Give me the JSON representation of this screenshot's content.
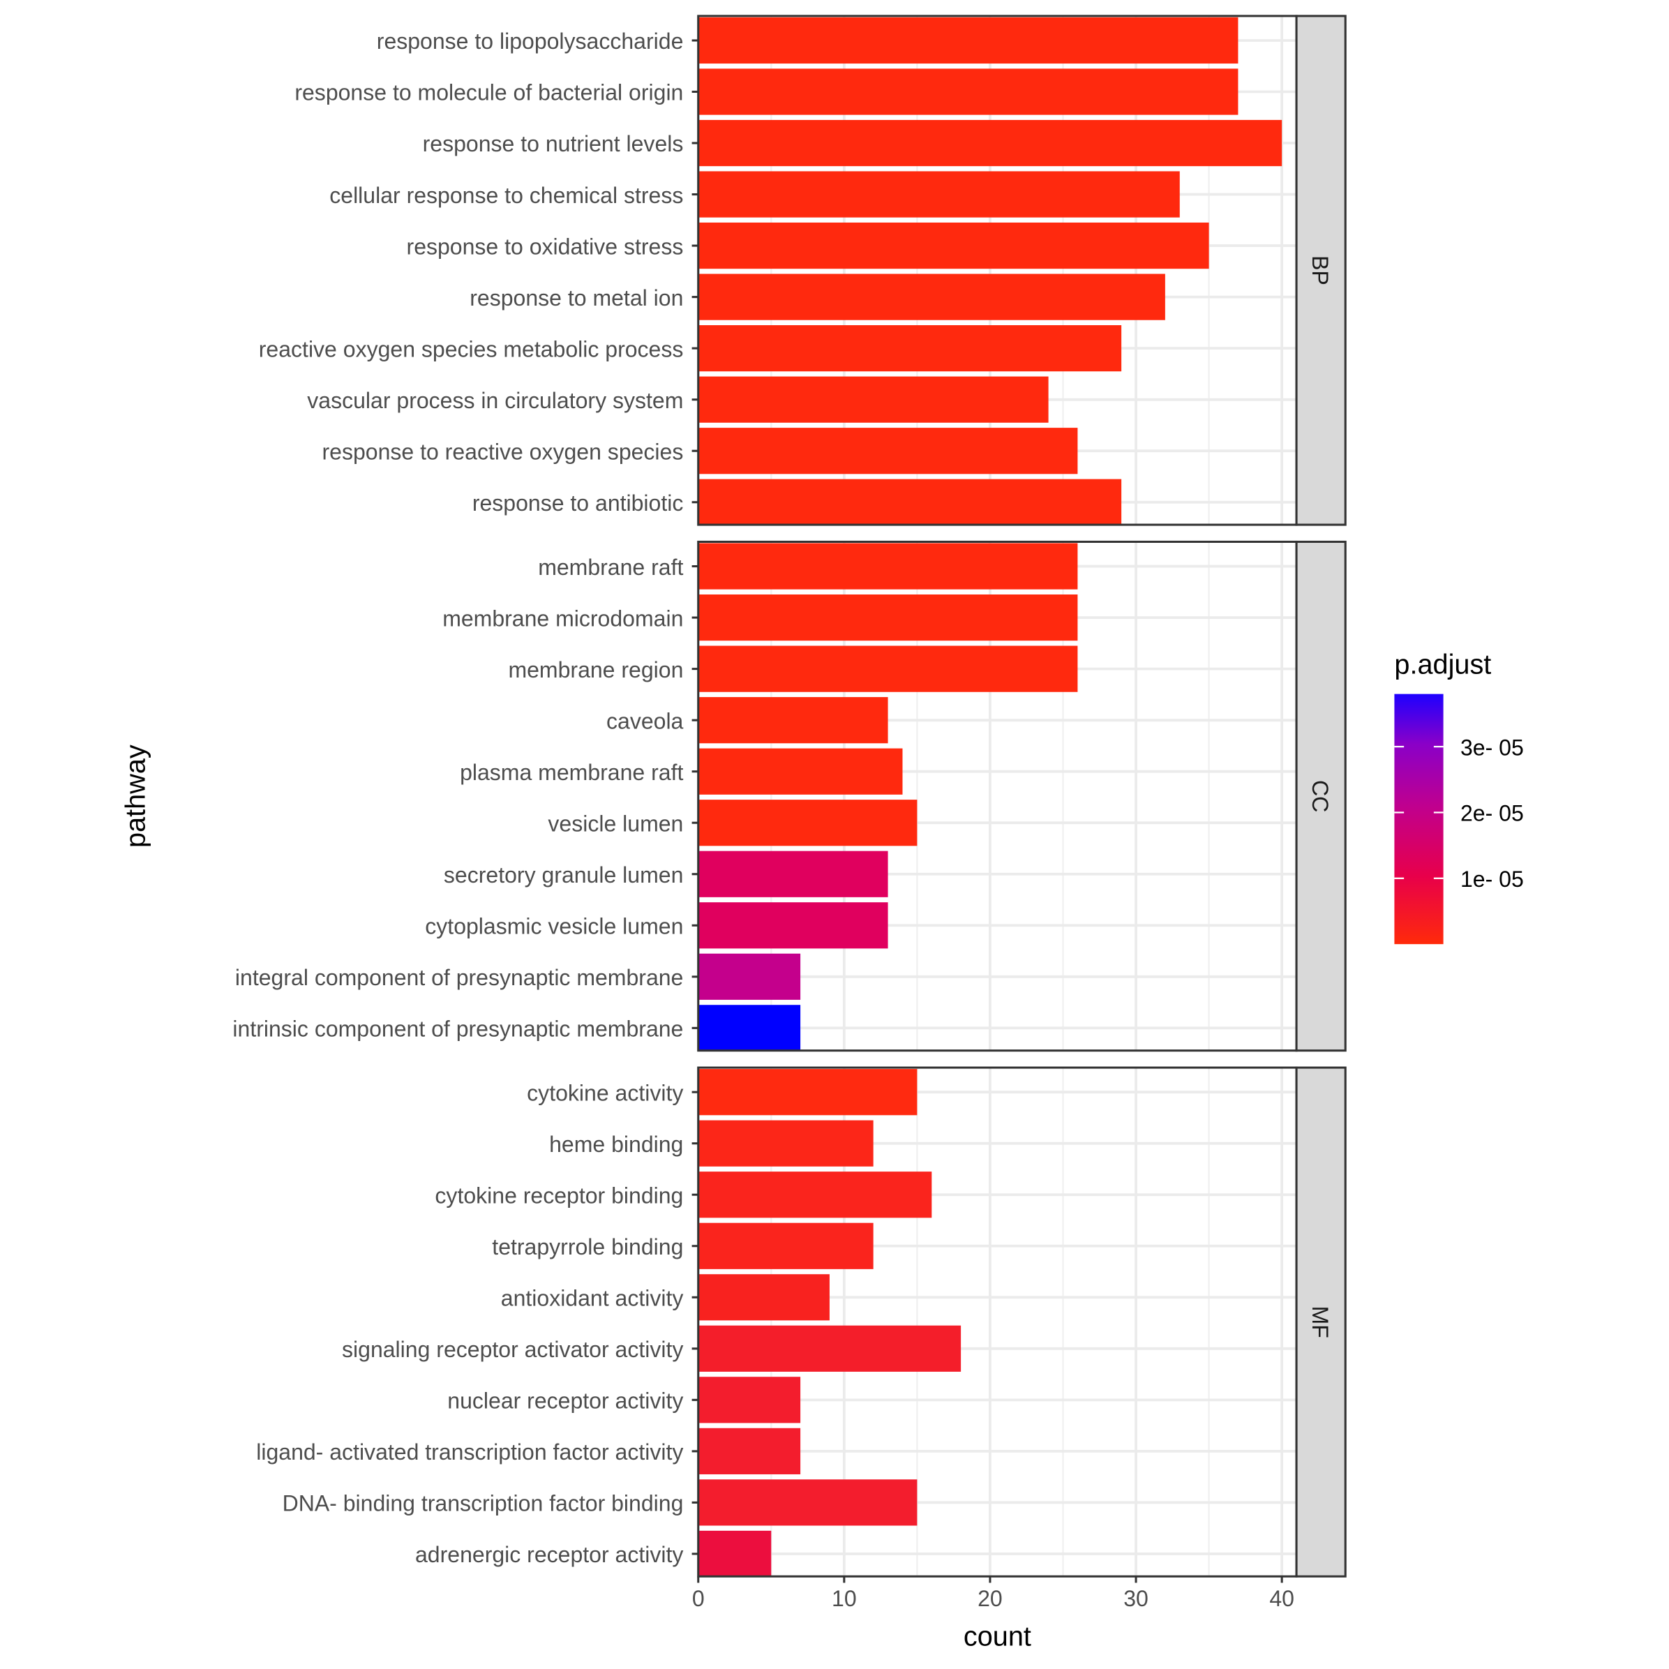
{
  "chart_data": {
    "type": "bar",
    "orientation": "horizontal",
    "xlabel": "count",
    "ylabel": "pathway",
    "xlim": [
      0,
      41
    ],
    "x_ticks": [
      0,
      10,
      20,
      30,
      40
    ],
    "grid": true,
    "legend": {
      "title": "p.adjust",
      "placement": "right",
      "type": "colorbar",
      "range": [
        0,
        3.8e-05
      ],
      "ticks": [
        1e-05,
        2e-05,
        3e-05
      ],
      "tick_labels": [
        "1e- 05",
        "2e- 05",
        "3e- 05"
      ],
      "low_color": "#FF2A0A",
      "mid_color": "#C0008E",
      "high_color": "#1E00FF"
    },
    "facets": [
      {
        "name": "BP",
        "bars": [
          {
            "label": "response to lipopolysaccharide",
            "count": 37,
            "p_adjust": 1e-07,
            "color": "#FF290E"
          },
          {
            "label": "response to molecule of bacterial origin",
            "count": 37,
            "p_adjust": 1e-07,
            "color": "#FF290E"
          },
          {
            "label": "response to nutrient levels",
            "count": 40,
            "p_adjust": 1e-07,
            "color": "#FF290E"
          },
          {
            "label": "cellular response to chemical stress",
            "count": 33,
            "p_adjust": 1e-07,
            "color": "#FF290E"
          },
          {
            "label": "response to oxidative stress",
            "count": 35,
            "p_adjust": 1e-07,
            "color": "#FF290E"
          },
          {
            "label": "response to metal ion",
            "count": 32,
            "p_adjust": 1e-07,
            "color": "#FF290E"
          },
          {
            "label": "reactive oxygen species metabolic process",
            "count": 29,
            "p_adjust": 1e-07,
            "color": "#FF290E"
          },
          {
            "label": "vascular process in circulatory system",
            "count": 24,
            "p_adjust": 1e-07,
            "color": "#FF290E"
          },
          {
            "label": "response to reactive oxygen species",
            "count": 26,
            "p_adjust": 1e-07,
            "color": "#FF290E"
          },
          {
            "label": "response to antibiotic",
            "count": 29,
            "p_adjust": 1e-07,
            "color": "#FF290E"
          }
        ]
      },
      {
        "name": "CC",
        "bars": [
          {
            "label": "membrane raft",
            "count": 26,
            "p_adjust": 2e-07,
            "color": "#FF290E"
          },
          {
            "label": "membrane microdomain",
            "count": 26,
            "p_adjust": 2e-07,
            "color": "#FF290E"
          },
          {
            "label": "membrane region",
            "count": 26,
            "p_adjust": 2e-07,
            "color": "#FF290E"
          },
          {
            "label": "caveola",
            "count": 13,
            "p_adjust": 5e-07,
            "color": "#FF290E"
          },
          {
            "label": "plasma membrane raft",
            "count": 14,
            "p_adjust": 5e-07,
            "color": "#FF290E"
          },
          {
            "label": "vesicle lumen",
            "count": 15,
            "p_adjust": 6e-07,
            "color": "#FF290E"
          },
          {
            "label": "secretory granule lumen",
            "count": 13,
            "p_adjust": 1.2e-05,
            "color": "#E0005E"
          },
          {
            "label": "cytoplasmic vesicle lumen",
            "count": 13,
            "p_adjust": 1.2e-05,
            "color": "#E0005E"
          },
          {
            "label": "integral component of presynaptic membrane",
            "count": 7,
            "p_adjust": 2.2e-05,
            "color": "#C4008C"
          },
          {
            "label": "intrinsic component of presynaptic membrane",
            "count": 7,
            "p_adjust": 3.8e-05,
            "color": "#0000FF"
          }
        ]
      },
      {
        "name": "MF",
        "bars": [
          {
            "label": "cytokine activity",
            "count": 15,
            "p_adjust": 1e-06,
            "color": "#FF2A10"
          },
          {
            "label": "heme binding",
            "count": 12,
            "p_adjust": 2e-06,
            "color": "#FC2618"
          },
          {
            "label": "cytokine receptor binding",
            "count": 16,
            "p_adjust": 2.5e-06,
            "color": "#FA241D"
          },
          {
            "label": "tetrapyrrole binding",
            "count": 12,
            "p_adjust": 2.5e-06,
            "color": "#FA241D"
          },
          {
            "label": "antioxidant activity",
            "count": 9,
            "p_adjust": 3e-06,
            "color": "#F8221F"
          },
          {
            "label": "signaling receptor activator activity",
            "count": 18,
            "p_adjust": 3.5e-06,
            "color": "#F41E2A"
          },
          {
            "label": "nuclear receptor activity",
            "count": 7,
            "p_adjust": 4e-06,
            "color": "#F31D2D"
          },
          {
            "label": "ligand- activated transcription factor activity",
            "count": 7,
            "p_adjust": 4e-06,
            "color": "#F31D2D"
          },
          {
            "label": "DNA- binding transcription factor binding",
            "count": 15,
            "p_adjust": 4e-06,
            "color": "#F31D2D"
          },
          {
            "label": "adrenergic receptor activity",
            "count": 5,
            "p_adjust": 6e-06,
            "color": "#EC0E3E"
          }
        ]
      }
    ]
  }
}
